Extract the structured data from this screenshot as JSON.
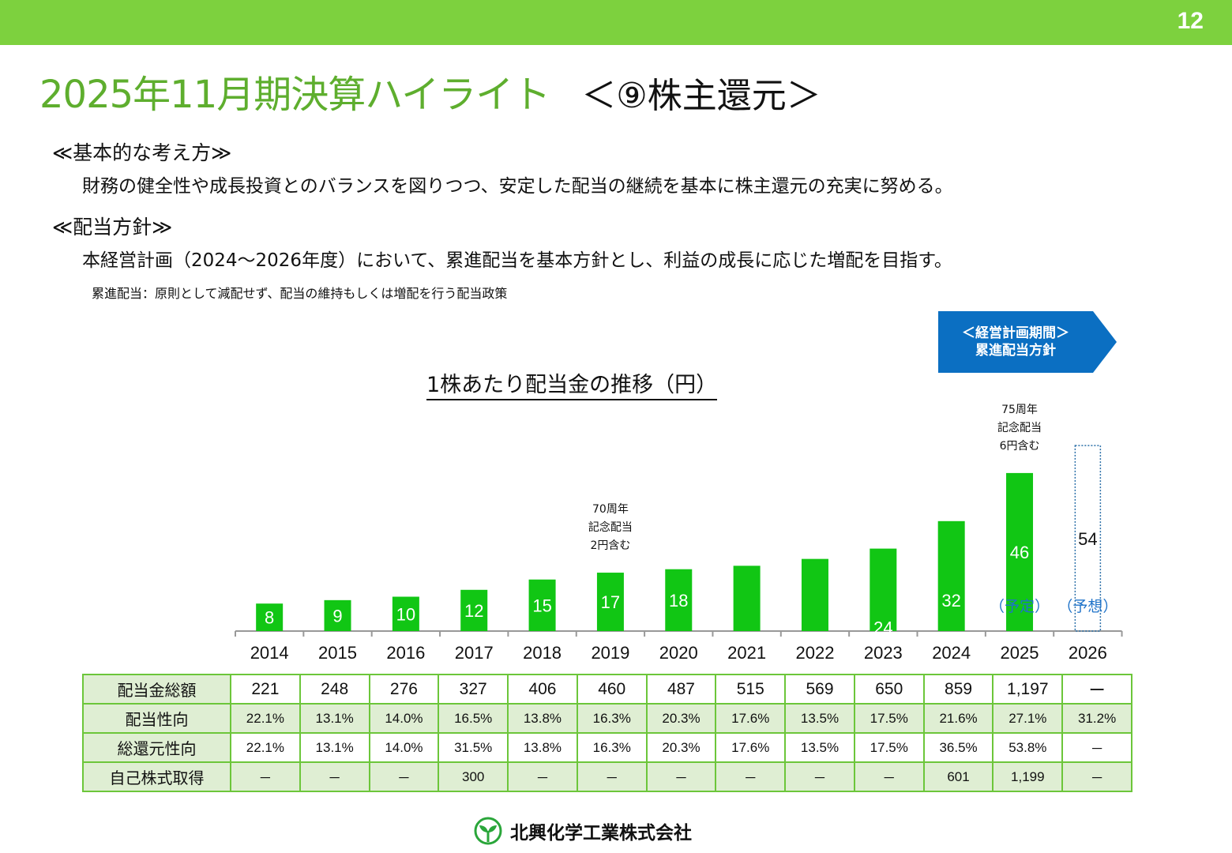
{
  "page_number": "12",
  "title": {
    "main": "2025年11月期決算ハイライト",
    "sub": "＜⑨株主還元＞"
  },
  "sections": [
    {
      "heading": "≪基本的な考え方≫",
      "text": "財務の健全性や成長投資とのバランスを図りつつ、安定した配当の継続を基本に株主還元の充実に努める。"
    },
    {
      "heading": "≪配当方針≫",
      "text": "本経営計画（2024～2026年度）において、累進配当を基本方針とし、利益の成長に応じた増配を目指す。"
    }
  ],
  "note": "累進配当：原則として減配せず、配当の維持もしくは増配を行う配当政策",
  "badge": {
    "line1": "＜経営計画期間＞",
    "line2": "累進配当方針",
    "color": "#0b6fc2"
  },
  "chart_data": {
    "type": "bar",
    "title": "1株あたり配当金の推移（円）",
    "categories": [
      "2014",
      "2015",
      "2016",
      "2017",
      "2018",
      "2019",
      "2020",
      "2021",
      "2022",
      "2023",
      "2024",
      "2025",
      "2026"
    ],
    "values": [
      8,
      9,
      10,
      12,
      15,
      17,
      18,
      19,
      21,
      24,
      32,
      46,
      54
    ],
    "forecast_categories": [
      "2026"
    ],
    "bar_color": "#11c614",
    "status_labels": [
      {
        "category": "2025",
        "text": "（予定）"
      },
      {
        "category": "2026",
        "text": "（予想）"
      }
    ],
    "annotations": [
      {
        "category": "2019",
        "lines": [
          "70周年",
          "記念配当",
          "2円含む"
        ]
      },
      {
        "category": "2025",
        "lines": [
          "75周年",
          "記念配当",
          "6円含む"
        ]
      }
    ]
  },
  "table": {
    "rows": [
      {
        "label": "配当金総額",
        "values": [
          "221",
          "248",
          "276",
          "327",
          "406",
          "460",
          "487",
          "515",
          "569",
          "650",
          "859",
          "1,197",
          "ー"
        ]
      },
      {
        "label": "配当性向",
        "values": [
          "22.1%",
          "13.1%",
          "14.0%",
          "16.5%",
          "13.8%",
          "16.3%",
          "20.3%",
          "17.6%",
          "13.5%",
          "17.5%",
          "21.6%",
          "27.1%",
          "31.2%"
        ]
      },
      {
        "label": "総還元性向",
        "values": [
          "22.1%",
          "13.1%",
          "14.0%",
          "31.5%",
          "13.8%",
          "16.3%",
          "20.3%",
          "17.6%",
          "13.5%",
          "17.5%",
          "36.5%",
          "53.8%",
          "－"
        ]
      },
      {
        "label": "自己株式取得",
        "values": [
          "－",
          "－",
          "－",
          "300",
          "－",
          "－",
          "－",
          "－",
          "－",
          "－",
          "601",
          "1,199",
          "－"
        ]
      }
    ]
  },
  "footer": {
    "company": "北興化学工業株式会社"
  }
}
